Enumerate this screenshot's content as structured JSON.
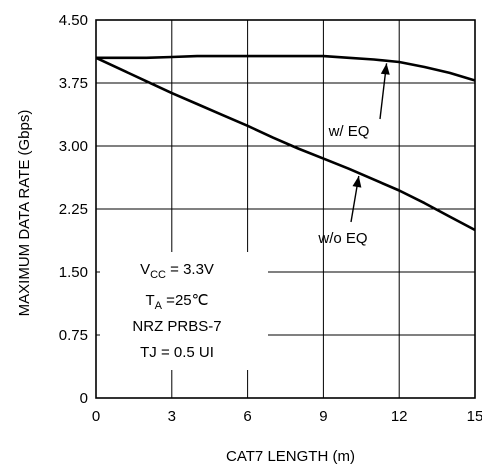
{
  "chart_data": {
    "type": "line",
    "title": "",
    "xlabel": "CAT7 LENGTH (m)",
    "ylabel": "MAXIMUM DATA RATE (Gbps)",
    "xlim": [
      0,
      15
    ],
    "ylim": [
      0,
      4.5
    ],
    "xticks": [
      0,
      3,
      6,
      9,
      12,
      15
    ],
    "xtick_labels": [
      "0",
      "3",
      "6",
      "9",
      "12",
      "15"
    ],
    "yticks": [
      0,
      0.75,
      1.5,
      2.25,
      3.0,
      3.75,
      4.5
    ],
    "ytick_labels": [
      "0",
      "0.75",
      "1.50",
      "2.25",
      "3.00",
      "3.75",
      "4.50"
    ],
    "grid": true,
    "series": [
      {
        "name": "w/ EQ",
        "x": [
          0,
          1,
          2,
          3,
          4,
          5,
          6,
          7,
          8,
          9,
          10,
          11,
          12,
          13,
          14,
          15
        ],
        "y": [
          4.05,
          4.05,
          4.05,
          4.06,
          4.07,
          4.07,
          4.07,
          4.07,
          4.07,
          4.07,
          4.05,
          4.03,
          4.0,
          3.94,
          3.87,
          3.78
        ]
      },
      {
        "name": "w/o EQ",
        "x": [
          0,
          1,
          2,
          3,
          4,
          5,
          6,
          7,
          8,
          9,
          10,
          11,
          12,
          13,
          14,
          15
        ],
        "y": [
          4.05,
          3.91,
          3.77,
          3.63,
          3.5,
          3.37,
          3.24,
          3.1,
          2.97,
          2.85,
          2.73,
          2.6,
          2.47,
          2.32,
          2.16,
          2.0
        ]
      }
    ],
    "annotations": {
      "w_eq": "w/ EQ",
      "wo_eq": "w/o EQ"
    },
    "conditions": [
      {
        "main": "V",
        "sub": "CC",
        "rest": " = 3.3V"
      },
      {
        "main": "T",
        "sub": "A",
        "rest": " =25℃"
      },
      {
        "main": "NRZ PRBS-7",
        "sub": "",
        "rest": ""
      },
      {
        "main": "TJ = 0.5 UI",
        "sub": "",
        "rest": ""
      }
    ]
  }
}
